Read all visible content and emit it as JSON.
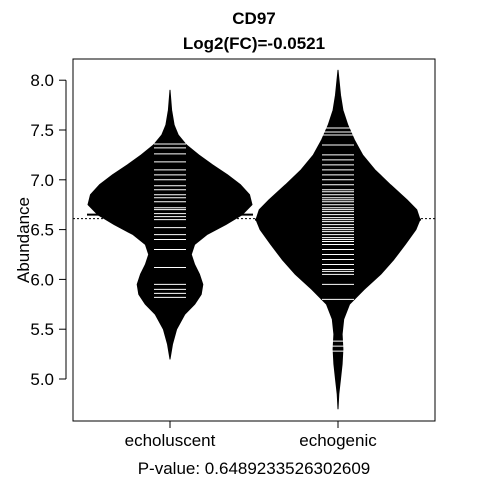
{
  "chart_data": {
    "type": "beanplot",
    "title": "CD97",
    "subtitle": "Log2(FC)=-0.0521",
    "ylabel": "Abundance",
    "xlabel": "P-value: 0.6489233526302609",
    "categories": [
      "echoluscent",
      "echogenic"
    ],
    "ylim": [
      4.6,
      8.4
    ],
    "yticks": [
      5.0,
      5.5,
      6.0,
      6.5,
      7.0,
      7.5,
      8.0
    ],
    "ytick_labels": [
      "5.0",
      "5.5",
      "6.0",
      "6.5",
      "7.0",
      "7.5",
      "8.0"
    ],
    "overall_mean": 6.61,
    "series": [
      {
        "category": "echoluscent",
        "mean": 6.65,
        "density": [
          [
            5.2,
            0.0
          ],
          [
            5.35,
            0.03
          ],
          [
            5.5,
            0.08
          ],
          [
            5.65,
            0.18
          ],
          [
            5.75,
            0.3
          ],
          [
            5.85,
            0.38
          ],
          [
            5.95,
            0.4
          ],
          [
            6.05,
            0.36
          ],
          [
            6.15,
            0.3
          ],
          [
            6.25,
            0.26
          ],
          [
            6.35,
            0.3
          ],
          [
            6.45,
            0.45
          ],
          [
            6.55,
            0.68
          ],
          [
            6.65,
            0.88
          ],
          [
            6.75,
            1.0
          ],
          [
            6.85,
            0.97
          ],
          [
            6.95,
            0.86
          ],
          [
            7.05,
            0.7
          ],
          [
            7.15,
            0.52
          ],
          [
            7.25,
            0.35
          ],
          [
            7.35,
            0.2
          ],
          [
            7.45,
            0.1
          ],
          [
            7.55,
            0.05
          ],
          [
            7.7,
            0.02
          ],
          [
            7.9,
            0.0
          ]
        ],
        "observations": [
          5.82,
          5.86,
          5.9,
          5.95,
          6.12,
          6.3,
          6.4,
          6.45,
          6.52,
          6.6,
          6.63,
          6.66,
          6.7,
          6.72,
          6.78,
          6.82,
          6.85,
          6.9,
          6.94,
          7.0,
          7.05,
          7.1,
          7.18,
          7.26,
          7.32,
          7.36
        ]
      },
      {
        "category": "echogenic",
        "mean": 6.6,
        "density": [
          [
            4.7,
            0.0
          ],
          [
            4.85,
            0.01
          ],
          [
            5.0,
            0.03
          ],
          [
            5.15,
            0.05
          ],
          [
            5.3,
            0.06
          ],
          [
            5.45,
            0.05
          ],
          [
            5.6,
            0.07
          ],
          [
            5.75,
            0.14
          ],
          [
            5.9,
            0.32
          ],
          [
            6.05,
            0.52
          ],
          [
            6.2,
            0.68
          ],
          [
            6.35,
            0.82
          ],
          [
            6.5,
            0.95
          ],
          [
            6.6,
            1.0
          ],
          [
            6.7,
            0.96
          ],
          [
            6.8,
            0.84
          ],
          [
            6.95,
            0.64
          ],
          [
            7.1,
            0.45
          ],
          [
            7.25,
            0.3
          ],
          [
            7.4,
            0.2
          ],
          [
            7.55,
            0.12
          ],
          [
            7.7,
            0.06
          ],
          [
            7.85,
            0.03
          ],
          [
            8.1,
            0.0
          ]
        ],
        "observations": [
          5.28,
          5.33,
          5.38,
          5.8,
          5.95,
          6.05,
          6.08,
          6.1,
          6.15,
          6.2,
          6.25,
          6.3,
          6.35,
          6.38,
          6.4,
          6.42,
          6.45,
          6.48,
          6.5,
          6.52,
          6.55,
          6.58,
          6.6,
          6.62,
          6.65,
          6.68,
          6.7,
          6.72,
          6.75,
          6.78,
          6.8,
          6.82,
          6.85,
          6.88,
          6.9,
          6.95,
          7.0,
          7.05,
          7.1,
          7.15,
          7.2,
          7.25,
          7.35,
          7.45,
          7.48,
          7.52
        ]
      }
    ]
  }
}
